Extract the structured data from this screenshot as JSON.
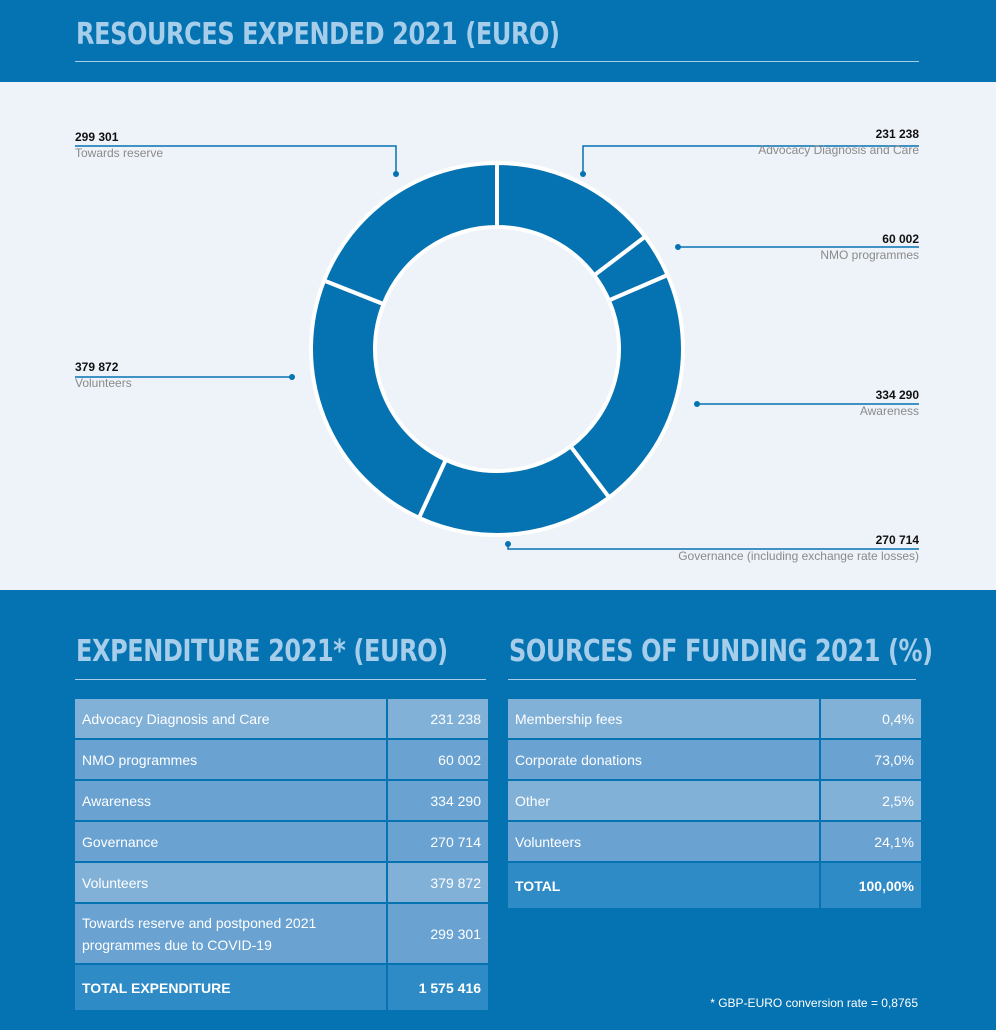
{
  "header": {
    "title": "RESOURCES EXPENDED 2021 (EURO)"
  },
  "chart_data": {
    "type": "pie",
    "title": "RESOURCES EXPENDED 2021 (EURO)",
    "slices": [
      {
        "name": "Advocacy Diagnosis and Care",
        "value": 231238,
        "value_label": "231 238"
      },
      {
        "name": "NMO programmes",
        "value": 60002,
        "value_label": "60 002"
      },
      {
        "name": "Awareness",
        "value": 334290,
        "value_label": "334 290"
      },
      {
        "name": "Governance (including exchange rate losses)",
        "value": 270714,
        "value_label": "270 714"
      },
      {
        "name": "Volunteers",
        "value": 379872,
        "value_label": "379 872"
      },
      {
        "name": "Towards reserve",
        "value": 299301,
        "value_label": "299 301"
      }
    ],
    "colors": {
      "slice": "#0573b1",
      "separator": "#ffffff",
      "background": "#eef3f9",
      "leader": "#0573b1"
    }
  },
  "expenditure": {
    "title": "EXPENDITURE 2021* (EURO)",
    "rows": [
      {
        "label": "Advocacy Diagnosis and Care",
        "value": "231 238"
      },
      {
        "label": "NMO programmes",
        "value": "60 002"
      },
      {
        "label": "Awareness",
        "value": "334 290"
      },
      {
        "label": "Governance",
        "value": "270 714"
      },
      {
        "label": "Volunteers",
        "value": "379 872"
      },
      {
        "label": "Towards reserve and postponed 2021\n programmes due to COVID-19",
        "value": "299 301"
      }
    ],
    "total": {
      "label": "TOTAL EXPENDITURE",
      "value": "1 575 416"
    }
  },
  "funding": {
    "title": "SOURCES OF FUNDING 2021 (%)",
    "rows": [
      {
        "label": "Membership fees",
        "value": "0,4%"
      },
      {
        "label": "Corporate donations",
        "value": "73,0%"
      },
      {
        "label": "Other",
        "value": "2,5%"
      },
      {
        "label": "Volunteers",
        "value": "24,1%"
      }
    ],
    "total": {
      "label": "TOTAL",
      "value": "100,00%"
    }
  },
  "footnote": "* GBP-EURO conversion rate = 0,8765",
  "colors": {
    "brand_blue": "#0573b1",
    "heading": "#a6cdea",
    "row_light": "#82b1d8",
    "row_mid": "#6aa2d1",
    "row_total": "#2f8bc6"
  }
}
